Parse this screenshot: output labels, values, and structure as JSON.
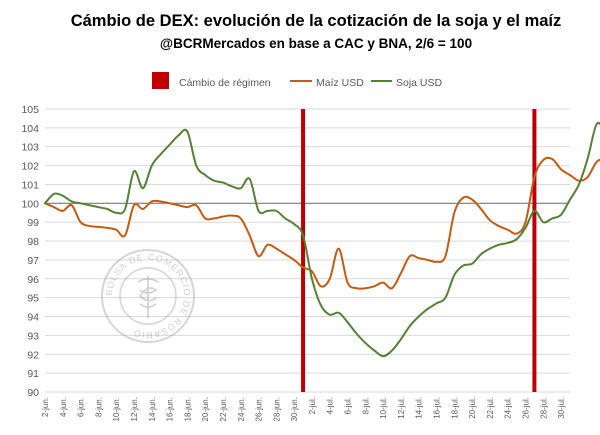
{
  "chart_data": {
    "type": "line",
    "title": "Cámbio de DEX: evolución de la cotización de la soja y el maíz",
    "subtitle": "@BCRMercados en base a CAC y BNA, 2/6 = 100",
    "ylim": [
      90,
      105
    ],
    "yticks": [
      90,
      91,
      92,
      93,
      94,
      95,
      96,
      97,
      98,
      99,
      100,
      101,
      102,
      103,
      104,
      105
    ],
    "x_tick_labels": [
      "2-jun.",
      "4-jun.",
      "6-jun.",
      "8-jun.",
      "10-jun.",
      "12-jun.",
      "14-jun.",
      "16-jun.",
      "18-jun.",
      "20-jun.",
      "22-jun.",
      "24-jun.",
      "26-jun.",
      "28-jun.",
      "30-jun.",
      "2-jul.",
      "4-jul.",
      "6-jul.",
      "8-jul.",
      "10-jul.",
      "12-jul.",
      "14-jul.",
      "16-jul.",
      "18-jul.",
      "20-jul.",
      "22-jul.",
      "24-jul.",
      "26-jul.",
      "28-jul.",
      "30-jul."
    ],
    "x_day_start": "2-jun.",
    "x_day_end": "31-jul.",
    "baseline": 100,
    "regime_changes": [
      "1-jul.",
      "27-jul."
    ],
    "legend": [
      "Cámbio de régimen",
      "Maíz USD",
      "Soja USD"
    ],
    "series": [
      {
        "name": "Maíz USD",
        "color": "#C55A11",
        "points": [
          [
            "2-jun.",
            100.0
          ],
          [
            "3-jun.",
            99.8
          ],
          [
            "4-jun.",
            99.6
          ],
          [
            "5-jun.",
            99.9
          ],
          [
            "6-jun.",
            99.0
          ],
          [
            "7-jun.",
            98.8
          ],
          [
            "8-jun.",
            98.75
          ],
          [
            "9-jun.",
            98.7
          ],
          [
            "10-jun.",
            98.6
          ],
          [
            "11-jun.",
            98.3
          ],
          [
            "12-jun.",
            99.9
          ],
          [
            "13-jun.",
            99.7
          ],
          [
            "14-jun.",
            100.1
          ],
          [
            "15-jun.",
            100.1
          ],
          [
            "16-jun.",
            100.0
          ],
          [
            "17-jun.",
            99.9
          ],
          [
            "18-jun.",
            99.8
          ],
          [
            "19-jun.",
            99.9
          ],
          [
            "20-jun.",
            99.2
          ],
          [
            "21-jun.",
            99.2
          ],
          [
            "22-jun.",
            99.3
          ],
          [
            "23-jun.",
            99.35
          ],
          [
            "24-jun.",
            99.2
          ],
          [
            "25-jun.",
            98.3
          ],
          [
            "26-jun.",
            97.2
          ],
          [
            "27-jun.",
            97.8
          ],
          [
            "28-jun.",
            97.6
          ],
          [
            "29-jun.",
            97.3
          ],
          [
            "30-jun.",
            97.0
          ],
          [
            "1-jul.",
            96.6
          ],
          [
            "2-jul.",
            96.4
          ],
          [
            "3-jul.",
            95.6
          ],
          [
            "4-jul.",
            96.0
          ],
          [
            "5-jul.",
            97.6
          ],
          [
            "6-jul.",
            95.8
          ],
          [
            "7-jul.",
            95.5
          ],
          [
            "8-jul.",
            95.5
          ],
          [
            "9-jul.",
            95.6
          ],
          [
            "10-jul.",
            95.8
          ],
          [
            "11-jul.",
            95.5
          ],
          [
            "12-jul.",
            96.3
          ],
          [
            "13-jul.",
            97.2
          ],
          [
            "14-jul.",
            97.1
          ],
          [
            "15-jul.",
            97.0
          ],
          [
            "16-jul.",
            96.9
          ],
          [
            "17-jul.",
            97.2
          ],
          [
            "18-jul.",
            99.5
          ],
          [
            "19-jul.",
            100.3
          ],
          [
            "20-jul.",
            100.2
          ],
          [
            "21-jul.",
            99.7
          ],
          [
            "22-jul.",
            99.1
          ],
          [
            "23-jul.",
            98.8
          ],
          [
            "24-jul.",
            98.6
          ],
          [
            "25-jul.",
            98.4
          ],
          [
            "26-jul.",
            99.0
          ],
          [
            "27-jul.",
            101.4
          ],
          [
            "28-jul.",
            102.3
          ],
          [
            "29-jul.",
            102.35
          ],
          [
            "30-jul.",
            101.8
          ],
          [
            "31-jul.",
            101.5
          ],
          [
            "1-ago.",
            101.2
          ],
          [
            "2-ago.",
            101.4
          ],
          [
            "3-ago.",
            102.2
          ],
          [
            "4-ago.",
            102.35
          ],
          [
            "5-ago.",
            102.3
          ]
        ]
      },
      {
        "name": "Soja USD",
        "color": "#548235",
        "points": [
          [
            "2-jun.",
            100.0
          ],
          [
            "3-jun.",
            100.5
          ],
          [
            "4-jun.",
            100.4
          ],
          [
            "5-jun.",
            100.1
          ],
          [
            "6-jun.",
            100.0
          ],
          [
            "7-jun.",
            99.9
          ],
          [
            "8-jun.",
            99.8
          ],
          [
            "9-jun.",
            99.7
          ],
          [
            "10-jun.",
            99.5
          ],
          [
            "11-jun.",
            99.7
          ],
          [
            "12-jun.",
            101.7
          ],
          [
            "13-jun.",
            100.8
          ],
          [
            "14-jun.",
            102.0
          ],
          [
            "15-jun.",
            102.6
          ],
          [
            "16-jun.",
            103.1
          ],
          [
            "17-jun.",
            103.6
          ],
          [
            "18-jun.",
            103.8
          ],
          [
            "19-jun.",
            102.0
          ],
          [
            "20-jun.",
            101.5
          ],
          [
            "21-jun.",
            101.2
          ],
          [
            "22-jun.",
            101.1
          ],
          [
            "23-jun.",
            100.9
          ],
          [
            "24-jun.",
            100.8
          ],
          [
            "25-jun.",
            101.3
          ],
          [
            "26-jun.",
            99.6
          ],
          [
            "27-jun.",
            99.6
          ],
          [
            "28-jun.",
            99.6
          ],
          [
            "29-jun.",
            99.2
          ],
          [
            "30-jun.",
            98.9
          ],
          [
            "1-jul.",
            98.3
          ],
          [
            "2-jul.",
            96.0
          ],
          [
            "3-jul.",
            94.6
          ],
          [
            "4-jul.",
            94.1
          ],
          [
            "5-jul.",
            94.2
          ],
          [
            "6-jul.",
            93.7
          ],
          [
            "7-jul.",
            93.1
          ],
          [
            "8-jul.",
            92.6
          ],
          [
            "9-jul.",
            92.2
          ],
          [
            "10-jul.",
            91.9
          ],
          [
            "11-jul.",
            92.2
          ],
          [
            "12-jul.",
            92.8
          ],
          [
            "13-jul.",
            93.5
          ],
          [
            "14-jul.",
            94.0
          ],
          [
            "15-jul.",
            94.4
          ],
          [
            "16-jul.",
            94.7
          ],
          [
            "17-jul.",
            95.0
          ],
          [
            "18-jul.",
            96.2
          ],
          [
            "19-jul.",
            96.7
          ],
          [
            "20-jul.",
            96.8
          ],
          [
            "21-jul.",
            97.3
          ],
          [
            "22-jul.",
            97.6
          ],
          [
            "23-jul.",
            97.8
          ],
          [
            "24-jul.",
            97.9
          ],
          [
            "25-jul.",
            98.1
          ],
          [
            "26-jul.",
            98.7
          ],
          [
            "27-jul.",
            99.6
          ],
          [
            "28-jul.",
            99.0
          ],
          [
            "29-jul.",
            99.2
          ],
          [
            "30-jul.",
            99.4
          ],
          [
            "31-jul.",
            100.2
          ],
          [
            "1-ago.",
            101.0
          ],
          [
            "2-ago.",
            102.4
          ],
          [
            "3-ago.",
            104.2
          ],
          [
            "4-ago.",
            103.8
          ],
          [
            "5-ago.",
            103.3
          ]
        ]
      }
    ],
    "colors": {
      "regime": "#C00000",
      "baseline": "#7F7F7F",
      "grid": "#D9D9D9",
      "axis_text": "#595959"
    }
  },
  "watermark": {
    "text": "BOLSA DE COMERCIO DE ROSARIO"
  }
}
